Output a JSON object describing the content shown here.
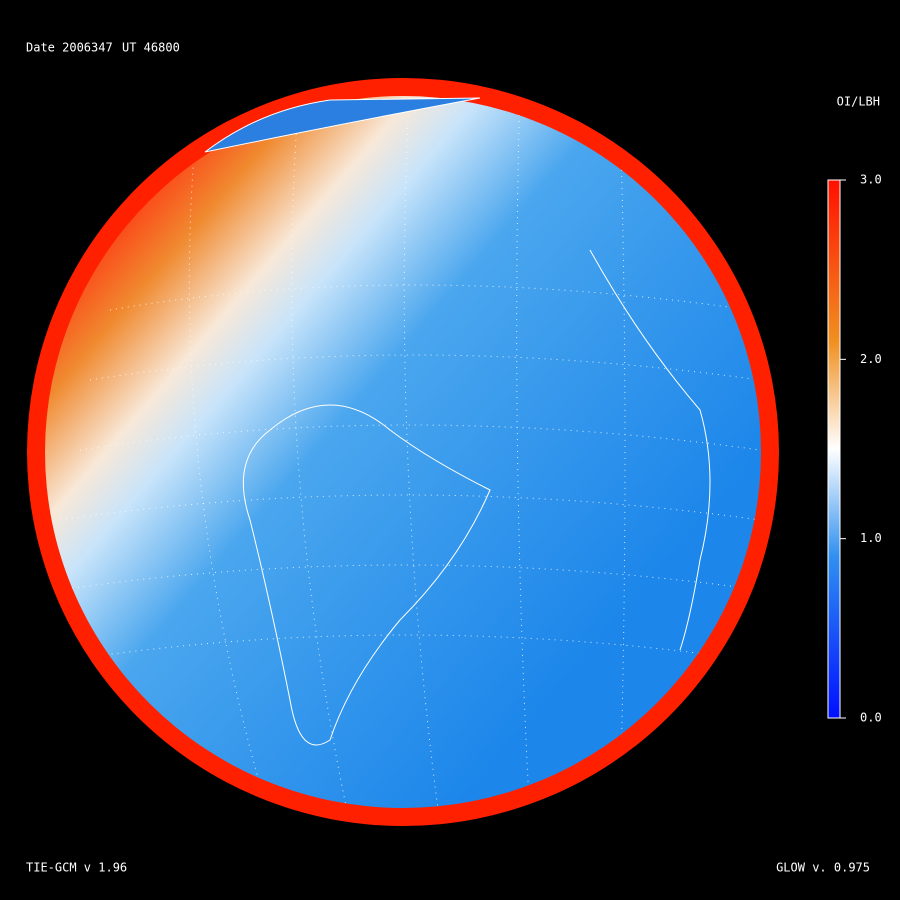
{
  "header": {
    "date": "Date 2006347",
    "time": "UT 46800"
  },
  "colorbar": {
    "label": "OI/LBH",
    "lim": [
      0,
      3
    ],
    "ticks": [
      {
        "value": 0,
        "label": "0.0"
      },
      {
        "value": 1,
        "label": "1.0"
      },
      {
        "value": 2,
        "label": "2.0"
      },
      {
        "value": 3,
        "label": "3.0"
      }
    ]
  },
  "footer": {
    "left": "TIE-GCM v 1.96",
    "right": "GLOW v. 0.975"
  }
}
